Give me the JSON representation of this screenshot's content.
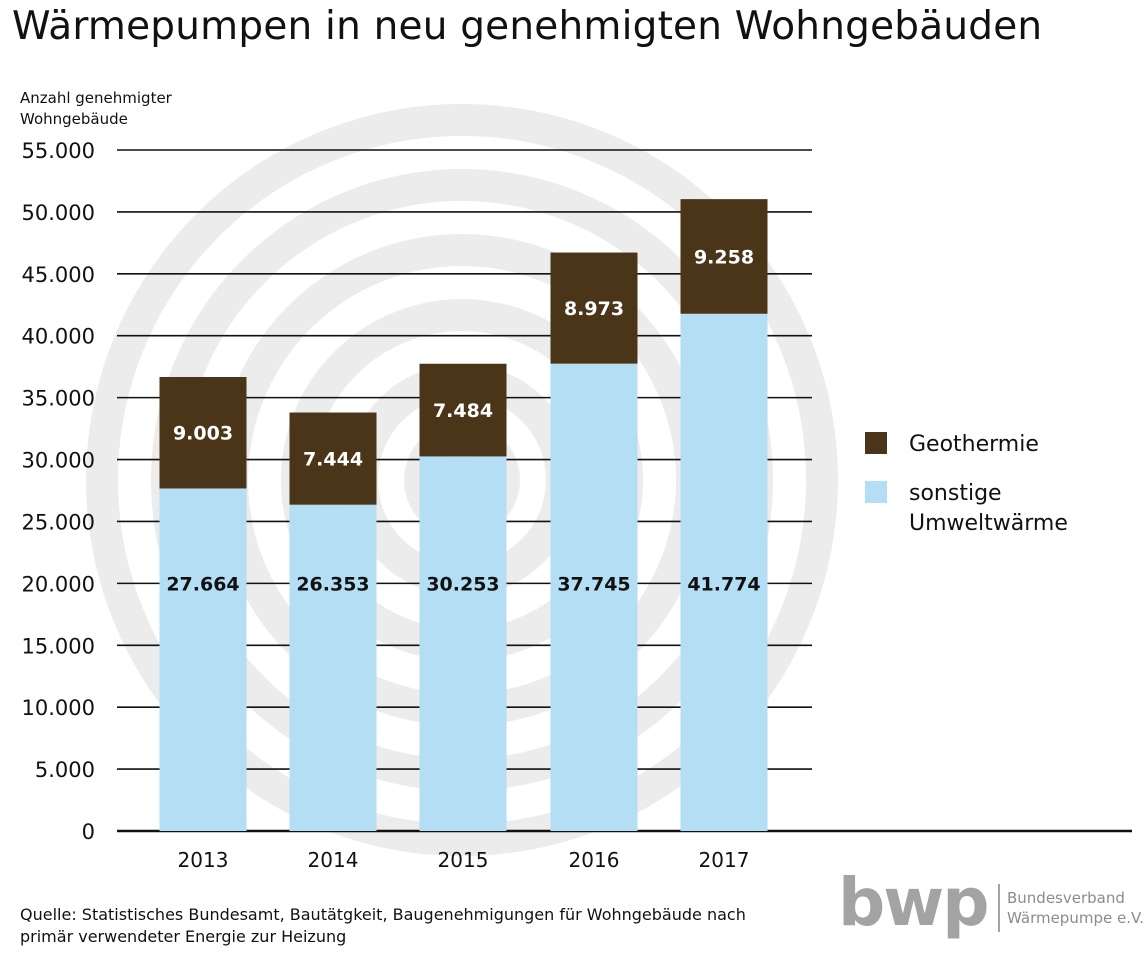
{
  "title": "Wärmepumpen in neu genehmigten Wohngebäuden",
  "source": "Quelle: Statistisches Bundesamt, Bautätgkeit, Baugenehmigungen für Wohngebäude nach primär verwendeter Energie zur Heizung",
  "brand": {
    "logo_text": "bwp",
    "name_line1": "Bundesverband",
    "name_line2": "Wärmepumpe e.V."
  },
  "colors": {
    "geothermie": "#4a3519",
    "sonstige": "#b3def4",
    "watermark": "#ececec",
    "grid": "#111111"
  },
  "chart_data": {
    "type": "bar",
    "stacked": true,
    "title": "Wärmepumpen in neu genehmigten Wohngebäuden",
    "ylabel": "Anzahl genehmigter Wohngebäude",
    "xlabel": "",
    "ylim": [
      0,
      55000
    ],
    "yticks": [
      0,
      5000,
      10000,
      15000,
      20000,
      25000,
      30000,
      35000,
      40000,
      45000,
      50000,
      55000
    ],
    "ytick_labels": [
      "0",
      "5.000",
      "10.000",
      "15.000",
      "20.000",
      "25.000",
      "30.000",
      "35.000",
      "40.000",
      "45.000",
      "50.000",
      "55.000"
    ],
    "grid": true,
    "legend_position": "right",
    "categories": [
      "2013",
      "2014",
      "2015",
      "2016",
      "2017"
    ],
    "series": [
      {
        "name": "sonstige Umweltwärme",
        "legend_lines": [
          "sonstige",
          "Umweltwärme"
        ],
        "values": [
          27664,
          26353,
          30253,
          37745,
          41774
        ],
        "value_labels": [
          "27.664",
          "26.353",
          "30.253",
          "37.745",
          "41.774"
        ]
      },
      {
        "name": "Geothermie",
        "legend_lines": [
          "Geothermie"
        ],
        "values": [
          9003,
          7444,
          7484,
          8973,
          9258
        ],
        "value_labels": [
          "9.003",
          "7.444",
          "7.484",
          "8.973",
          "9.258"
        ]
      }
    ]
  }
}
